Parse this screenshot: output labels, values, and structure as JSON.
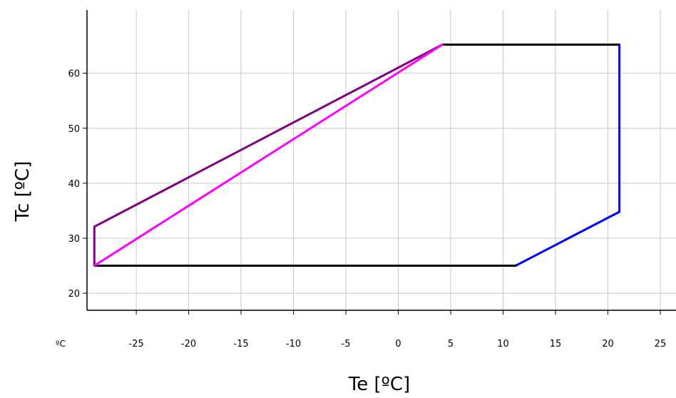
{
  "chart_data": {
    "type": "line",
    "title": "",
    "xlabel": "Te [ºC]",
    "ylabel": "Tc [ºC]",
    "x_unit_label": "ºC",
    "xlim": [
      -29.7,
      26.5
    ],
    "ylim": [
      16.9,
      71.5
    ],
    "x_ticks": [
      -25,
      -20,
      -15,
      -10,
      -5,
      0,
      5,
      10,
      15,
      20,
      25
    ],
    "y_ticks": [
      20,
      30,
      40,
      50,
      60
    ],
    "x_tick_labels": [
      "-25",
      "-20",
      "-15",
      "-10",
      "-5",
      "0",
      "5",
      "10",
      "15",
      "20",
      "25"
    ],
    "y_tick_labels": [
      "20",
      "30",
      "40",
      "50",
      "60"
    ],
    "grid": true,
    "series": [
      {
        "color": "#000000",
        "points": [
          [
            4.2,
            65.2
          ],
          [
            21.1,
            65.2
          ]
        ]
      },
      {
        "color": "#0000ff",
        "points": [
          [
            21.1,
            65.2
          ],
          [
            21.1,
            34.8
          ],
          [
            11.2,
            25.0
          ]
        ]
      },
      {
        "color": "#000000",
        "points": [
          [
            11.2,
            25.0
          ],
          [
            -29.0,
            25.0
          ]
        ]
      },
      {
        "color": "#800080",
        "points": [
          [
            -29.0,
            25.0
          ],
          [
            -29.0,
            32.1
          ],
          [
            4.2,
            65.2
          ]
        ]
      },
      {
        "color": "#ff00ff",
        "points": [
          [
            -29.0,
            25.0
          ],
          [
            4.2,
            65.2
          ]
        ]
      }
    ]
  }
}
